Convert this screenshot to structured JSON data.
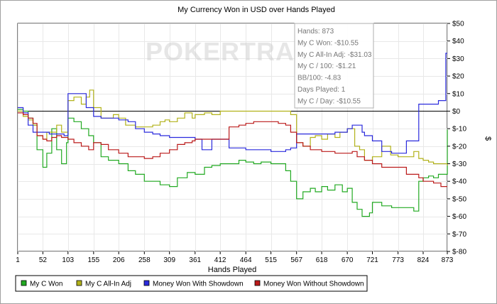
{
  "chart_data": {
    "type": "line",
    "title": "My Currency Won in USD over Hands Played",
    "xlabel": "Hands Played",
    "ylabel": "$",
    "xlim": [
      1,
      873
    ],
    "ylim": [
      -80,
      50
    ],
    "x_ticks": [
      1,
      52,
      103,
      155,
      206,
      258,
      309,
      361,
      412,
      464,
      515,
      567,
      618,
      670,
      721,
      773,
      824,
      873
    ],
    "y_ticks": [
      {
        "value": 50,
        "label": "$50"
      },
      {
        "value": 40,
        "label": "$40"
      },
      {
        "value": 30,
        "label": "$30"
      },
      {
        "value": 20,
        "label": "$20"
      },
      {
        "value": 10,
        "label": "$10"
      },
      {
        "value": 0,
        "label": "$0"
      },
      {
        "value": -10,
        "label": "$-10"
      },
      {
        "value": -20,
        "label": "$-20"
      },
      {
        "value": -30,
        "label": "$-30"
      },
      {
        "value": -40,
        "label": "$-40"
      },
      {
        "value": -50,
        "label": "$-50"
      },
      {
        "value": -60,
        "label": "$-60"
      },
      {
        "value": -70,
        "label": "$-70"
      },
      {
        "value": -80,
        "label": "$-80"
      }
    ],
    "grid": true,
    "legend_position": "bottom",
    "series": [
      {
        "name": "My C Won",
        "color": "#22aa22",
        "points": [
          [
            1,
            1
          ],
          [
            12,
            0
          ],
          [
            22,
            -4
          ],
          [
            32,
            -8
          ],
          [
            40,
            -22
          ],
          [
            52,
            -32
          ],
          [
            60,
            -24
          ],
          [
            70,
            -10
          ],
          [
            80,
            -22
          ],
          [
            90,
            -30
          ],
          [
            100,
            -18
          ],
          [
            103,
            -4
          ],
          [
            115,
            -6
          ],
          [
            130,
            -10
          ],
          [
            145,
            -14
          ],
          [
            155,
            -18
          ],
          [
            170,
            -26
          ],
          [
            185,
            -28
          ],
          [
            206,
            -30
          ],
          [
            225,
            -34
          ],
          [
            240,
            -36
          ],
          [
            258,
            -40
          ],
          [
            275,
            -40
          ],
          [
            290,
            -42
          ],
          [
            309,
            -43
          ],
          [
            325,
            -38
          ],
          [
            345,
            -35
          ],
          [
            361,
            -36
          ],
          [
            380,
            -32
          ],
          [
            395,
            -31
          ],
          [
            412,
            -30
          ],
          [
            430,
            -30
          ],
          [
            450,
            -28
          ],
          [
            464,
            -29
          ],
          [
            480,
            -30
          ],
          [
            495,
            -29
          ],
          [
            515,
            -30
          ],
          [
            530,
            -30
          ],
          [
            545,
            -34
          ],
          [
            555,
            -40
          ],
          [
            567,
            -50
          ],
          [
            580,
            -46
          ],
          [
            595,
            -44
          ],
          [
            605,
            -46
          ],
          [
            618,
            -43
          ],
          [
            630,
            -45
          ],
          [
            645,
            -42
          ],
          [
            660,
            -46
          ],
          [
            670,
            -44
          ],
          [
            680,
            -52
          ],
          [
            690,
            -56
          ],
          [
            700,
            -60
          ],
          [
            715,
            -58
          ],
          [
            721,
            -52
          ],
          [
            740,
            -54
          ],
          [
            760,
            -55
          ],
          [
            773,
            -55
          ],
          [
            790,
            -55
          ],
          [
            805,
            -57
          ],
          [
            815,
            -40
          ],
          [
            824,
            -38
          ],
          [
            835,
            -37
          ],
          [
            845,
            -38
          ],
          [
            855,
            -36
          ],
          [
            865,
            -36
          ],
          [
            873,
            -10.55
          ]
        ]
      },
      {
        "name": "My C All-In Adj",
        "color": "#b2b21a",
        "points": [
          [
            1,
            0
          ],
          [
            12,
            -3
          ],
          [
            22,
            -5
          ],
          [
            32,
            -8
          ],
          [
            40,
            -14
          ],
          [
            52,
            -16
          ],
          [
            60,
            -12
          ],
          [
            70,
            -12
          ],
          [
            80,
            -8
          ],
          [
            90,
            -12
          ],
          [
            103,
            6
          ],
          [
            115,
            8
          ],
          [
            130,
            4
          ],
          [
            140,
            8
          ],
          [
            147,
            12
          ],
          [
            155,
            2
          ],
          [
            170,
            -4
          ],
          [
            185,
            -4
          ],
          [
            195,
            -2
          ],
          [
            206,
            -4
          ],
          [
            220,
            -8
          ],
          [
            240,
            -9
          ],
          [
            258,
            -9
          ],
          [
            275,
            -8
          ],
          [
            290,
            -6
          ],
          [
            300,
            -5
          ],
          [
            309,
            -6
          ],
          [
            325,
            -4
          ],
          [
            340,
            -1
          ],
          [
            355,
            -4
          ],
          [
            361,
            -2
          ],
          [
            380,
            -1
          ],
          [
            395,
            -2
          ],
          [
            412,
            0
          ],
          [
            430,
            0
          ],
          [
            450,
            0
          ],
          [
            464,
            0
          ],
          [
            480,
            0
          ],
          [
            495,
            0
          ],
          [
            505,
            0
          ],
          [
            515,
            0
          ],
          [
            530,
            0
          ],
          [
            545,
            0
          ],
          [
            555,
            -2
          ],
          [
            567,
            -18
          ],
          [
            580,
            -20
          ],
          [
            595,
            -15
          ],
          [
            605,
            -14
          ],
          [
            618,
            -16
          ],
          [
            630,
            -13
          ],
          [
            645,
            -15
          ],
          [
            655,
            -12
          ],
          [
            670,
            -10
          ],
          [
            685,
            -20
          ],
          [
            695,
            -22
          ],
          [
            705,
            -28
          ],
          [
            721,
            -26
          ],
          [
            740,
            -20
          ],
          [
            758,
            -25
          ],
          [
            773,
            -26
          ],
          [
            790,
            -26
          ],
          [
            805,
            -23
          ],
          [
            815,
            -27
          ],
          [
            824,
            -28
          ],
          [
            835,
            -29
          ],
          [
            845,
            -30
          ],
          [
            860,
            -30
          ],
          [
            873,
            -31.03
          ]
        ]
      },
      {
        "name": "Money Won With Showdown",
        "color": "#2b2bdd",
        "points": [
          [
            1,
            2
          ],
          [
            12,
            -1
          ],
          [
            22,
            -8
          ],
          [
            32,
            -12
          ],
          [
            45,
            -12
          ],
          [
            52,
            -12
          ],
          [
            65,
            -13
          ],
          [
            80,
            -13
          ],
          [
            95,
            -14
          ],
          [
            103,
            10
          ],
          [
            110,
            10
          ],
          [
            125,
            10
          ],
          [
            140,
            2
          ],
          [
            155,
            -3
          ],
          [
            170,
            -4
          ],
          [
            185,
            -4
          ],
          [
            206,
            -5
          ],
          [
            225,
            -6
          ],
          [
            240,
            -10
          ],
          [
            258,
            -12
          ],
          [
            275,
            -13
          ],
          [
            290,
            -14
          ],
          [
            309,
            -15
          ],
          [
            325,
            -15
          ],
          [
            345,
            -15
          ],
          [
            361,
            -16
          ],
          [
            375,
            -22
          ],
          [
            390,
            -22
          ],
          [
            395,
            -16
          ],
          [
            412,
            -16
          ],
          [
            430,
            -21
          ],
          [
            450,
            -21
          ],
          [
            464,
            -22
          ],
          [
            480,
            -22
          ],
          [
            495,
            -22
          ],
          [
            515,
            -23
          ],
          [
            530,
            -23
          ],
          [
            545,
            -22
          ],
          [
            555,
            -21
          ],
          [
            567,
            -13
          ],
          [
            580,
            -13
          ],
          [
            595,
            -13
          ],
          [
            618,
            -13
          ],
          [
            630,
            -13
          ],
          [
            645,
            -12
          ],
          [
            660,
            -12
          ],
          [
            670,
            -10
          ],
          [
            680,
            -8
          ],
          [
            690,
            -8
          ],
          [
            700,
            -12
          ],
          [
            705,
            -14
          ],
          [
            721,
            -17
          ],
          [
            740,
            -23
          ],
          [
            760,
            -24
          ],
          [
            773,
            -24
          ],
          [
            790,
            -17
          ],
          [
            805,
            -17
          ],
          [
            815,
            4
          ],
          [
            824,
            4
          ],
          [
            835,
            4
          ],
          [
            845,
            4
          ],
          [
            855,
            6
          ],
          [
            865,
            6
          ],
          [
            870,
            33
          ],
          [
            873,
            33
          ]
        ]
      },
      {
        "name": "Money Won Without Showdown",
        "color": "#bb1a1a",
        "points": [
          [
            1,
            -1
          ],
          [
            12,
            -2
          ],
          [
            22,
            -4
          ],
          [
            32,
            -7
          ],
          [
            40,
            -14
          ],
          [
            52,
            -16
          ],
          [
            60,
            -17
          ],
          [
            70,
            -15
          ],
          [
            80,
            -14
          ],
          [
            90,
            -15
          ],
          [
            103,
            -16
          ],
          [
            115,
            -18
          ],
          [
            130,
            -20
          ],
          [
            145,
            -22
          ],
          [
            155,
            -18
          ],
          [
            170,
            -19
          ],
          [
            185,
            -22
          ],
          [
            206,
            -24
          ],
          [
            225,
            -26
          ],
          [
            240,
            -26
          ],
          [
            258,
            -27
          ],
          [
            275,
            -26
          ],
          [
            290,
            -24
          ],
          [
            309,
            -22
          ],
          [
            325,
            -19
          ],
          [
            340,
            -18
          ],
          [
            355,
            -17
          ],
          [
            361,
            -16
          ],
          [
            380,
            -16
          ],
          [
            395,
            -16
          ],
          [
            412,
            -16
          ],
          [
            430,
            -9
          ],
          [
            450,
            -8
          ],
          [
            464,
            -7
          ],
          [
            480,
            -6
          ],
          [
            495,
            -6
          ],
          [
            515,
            -6
          ],
          [
            530,
            -7
          ],
          [
            545,
            -8
          ],
          [
            555,
            -12
          ],
          [
            567,
            -18
          ],
          [
            580,
            -20
          ],
          [
            595,
            -22
          ],
          [
            605,
            -22
          ],
          [
            618,
            -23
          ],
          [
            630,
            -23
          ],
          [
            645,
            -24
          ],
          [
            660,
            -24
          ],
          [
            670,
            -24
          ],
          [
            680,
            -23
          ],
          [
            690,
            -26
          ],
          [
            705,
            -28
          ],
          [
            721,
            -30
          ],
          [
            740,
            -32
          ],
          [
            760,
            -32
          ],
          [
            773,
            -32
          ],
          [
            790,
            -36
          ],
          [
            805,
            -36
          ],
          [
            815,
            -38
          ],
          [
            824,
            -40
          ],
          [
            835,
            -40
          ],
          [
            845,
            -41
          ],
          [
            860,
            -43
          ],
          [
            873,
            -43
          ]
        ]
      }
    ],
    "tooltip": {
      "lines": [
        "Hands: 873",
        "My C Won: -$10.55",
        "My C All-In Adj: -$31.03",
        "My C / 100: -$1.21",
        "BB/100: -4.83",
        "Days Played: 1",
        "My C / Day: -$10.55"
      ]
    },
    "watermark": "POKERTRACK"
  }
}
